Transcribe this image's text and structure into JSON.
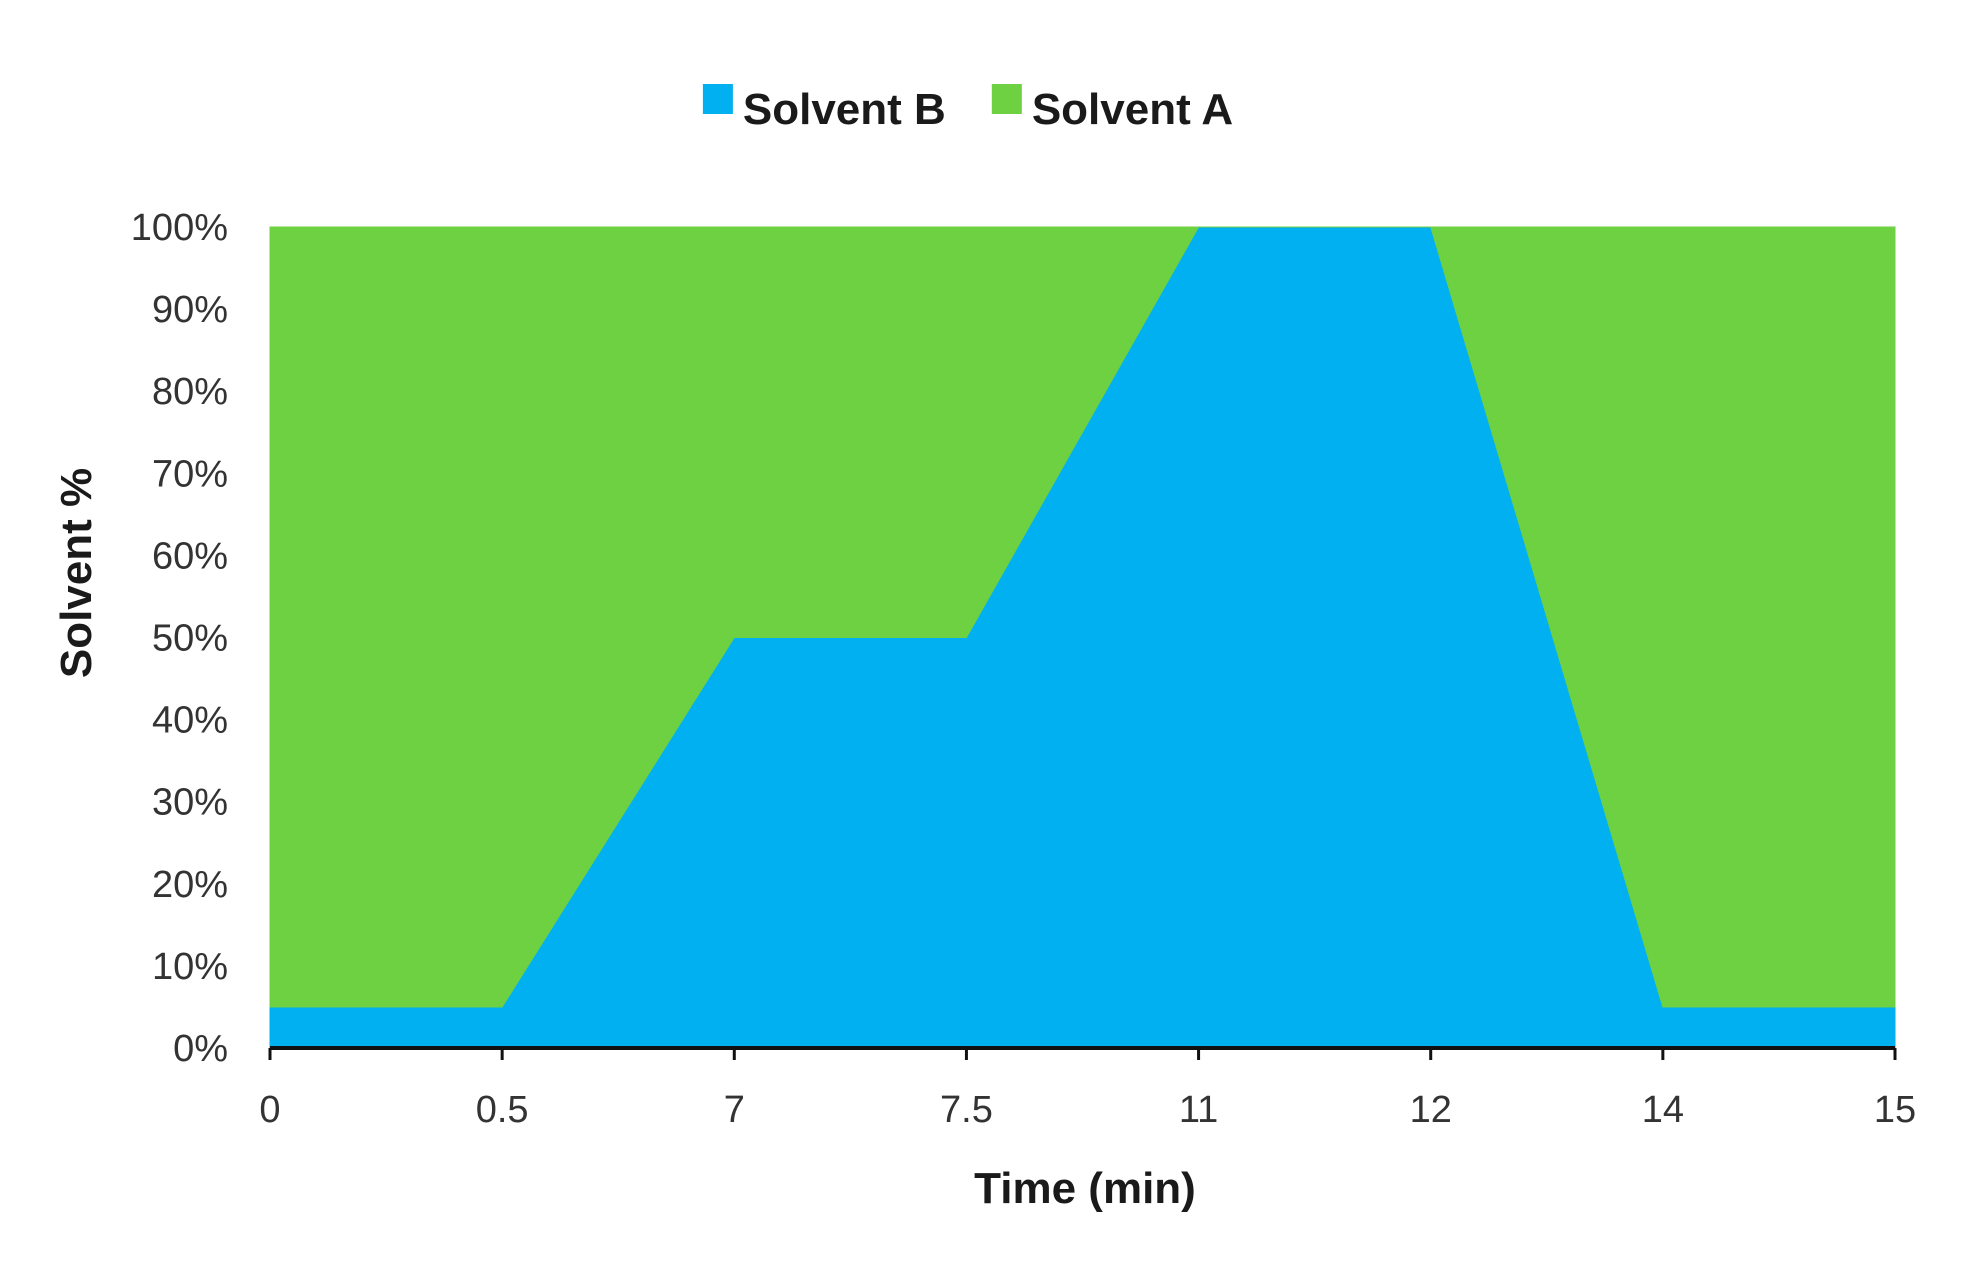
{
  "chart_data": {
    "type": "area",
    "stacked": true,
    "x_axis_type": "category",
    "categories": [
      "0",
      "0.5",
      "7",
      "7.5",
      "11",
      "12",
      "14",
      "15"
    ],
    "series": [
      {
        "name": "Solvent B",
        "color": "#00b0f0",
        "values": [
          5,
          5,
          50,
          50,
          100,
          100,
          5,
          5
        ]
      },
      {
        "name": "Solvent A",
        "color": "#6dd142",
        "values": [
          95,
          95,
          50,
          50,
          0,
          0,
          95,
          95
        ]
      }
    ],
    "xlabel": "Time (min)",
    "ylabel": "Solvent %",
    "ylim": [
      0,
      100
    ],
    "y_ticks": [
      0,
      10,
      20,
      30,
      40,
      50,
      60,
      70,
      80,
      90,
      100
    ],
    "y_tick_format": "percent",
    "grid": false,
    "legend_position": "top-center"
  }
}
